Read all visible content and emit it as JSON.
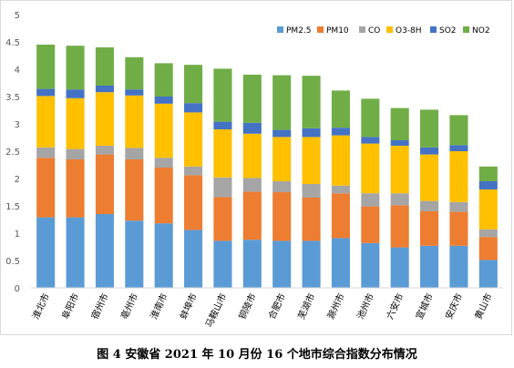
{
  "caption": "图 4 安徽省 2021 年 10 月份 16 个地市综合指数分布情况",
  "chart_data": {
    "type": "bar",
    "stacked": true,
    "ylim": [
      0,
      5
    ],
    "yticks": [
      "0",
      "0.5",
      "1",
      "1.5",
      "2",
      "2.5",
      "3",
      "3.5",
      "4",
      "4.5",
      "5"
    ],
    "grid": false,
    "legend_position": "top-right",
    "categories": [
      "淮北市",
      "阜阳市",
      "宿州市",
      "亳州市",
      "淮南市",
      "蚌埠市",
      "马鞍山市",
      "铜陵市",
      "合肥市",
      "芜湖市",
      "滁州市",
      "池州市",
      "六安市",
      "宣城市",
      "安庆市",
      "黄山市"
    ],
    "series": [
      {
        "name": "PM2.5",
        "color": "#5b9bd5",
        "values": [
          1.29,
          1.29,
          1.35,
          1.23,
          1.18,
          1.06,
          0.86,
          0.88,
          0.86,
          0.86,
          0.91,
          0.82,
          0.74,
          0.77,
          0.77,
          0.51
        ]
      },
      {
        "name": "PM10",
        "color": "#ed7d31",
        "values": [
          1.09,
          1.06,
          1.09,
          1.12,
          1.02,
          1.0,
          0.8,
          0.88,
          0.89,
          0.79,
          0.82,
          0.67,
          0.77,
          0.63,
          0.62,
          0.42
        ]
      },
      {
        "name": "CO",
        "color": "#a5a5a5",
        "values": [
          0.19,
          0.19,
          0.16,
          0.21,
          0.18,
          0.16,
          0.36,
          0.25,
          0.2,
          0.25,
          0.14,
          0.24,
          0.22,
          0.19,
          0.18,
          0.14
        ]
      },
      {
        "name": "O3-8H",
        "color": "#ffc000",
        "values": [
          0.94,
          0.93,
          0.98,
          0.96,
          0.99,
          0.99,
          0.88,
          0.81,
          0.81,
          0.86,
          0.92,
          0.91,
          0.87,
          0.85,
          0.93,
          0.73
        ]
      },
      {
        "name": "SO2",
        "color": "#4472c4",
        "values": [
          0.13,
          0.16,
          0.12,
          0.11,
          0.13,
          0.17,
          0.14,
          0.2,
          0.13,
          0.16,
          0.14,
          0.12,
          0.1,
          0.13,
          0.11,
          0.15
        ]
      },
      {
        "name": "NO2",
        "color": "#70ad47",
        "values": [
          0.81,
          0.8,
          0.7,
          0.59,
          0.61,
          0.7,
          0.97,
          0.88,
          1.0,
          0.96,
          0.68,
          0.7,
          0.59,
          0.69,
          0.55,
          0.27
        ]
      }
    ]
  }
}
